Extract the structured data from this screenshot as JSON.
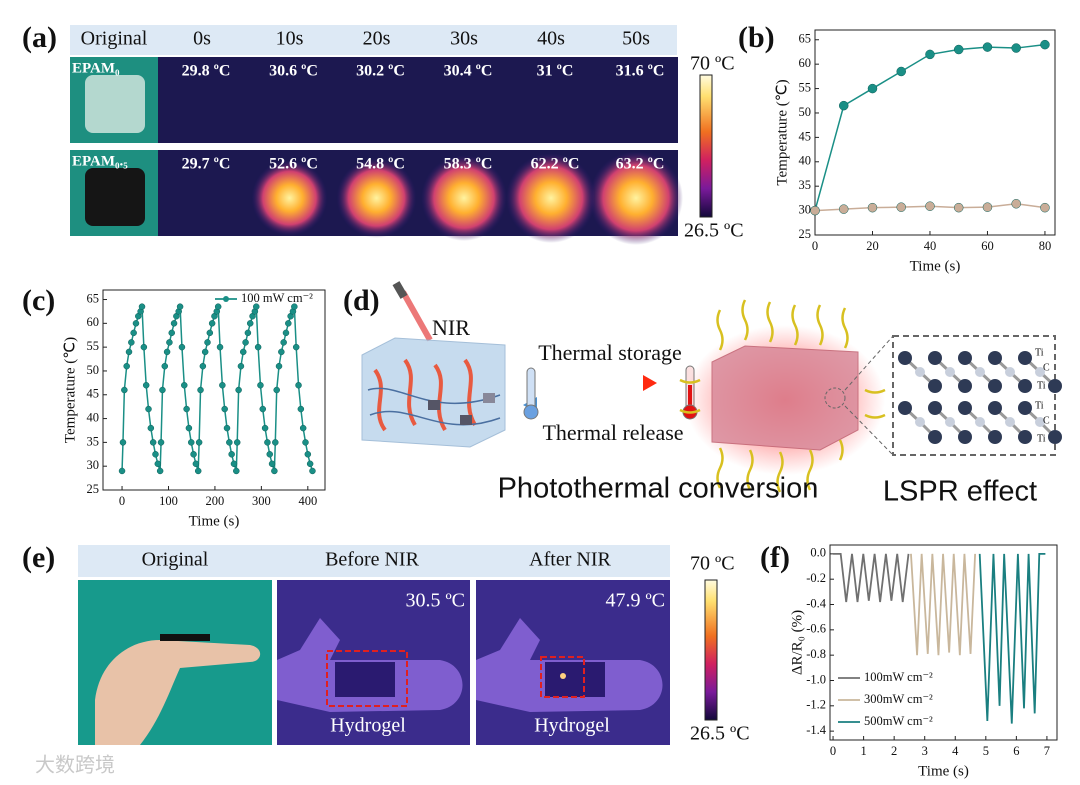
{
  "panel_labels": [
    "(a)",
    "(b)",
    "(c)",
    "(d)",
    "(e)",
    "(f)"
  ],
  "panel_a": {
    "header": [
      "Original",
      "0s",
      "10s",
      "20s",
      "30s",
      "40s",
      "50s"
    ],
    "rows": [
      {
        "label": "EPAM₀",
        "temps": [
          "29.8 ºC",
          "30.6 ºC",
          "30.2 ºC",
          "30.4 ºC",
          "31 ºC",
          "31.6 ºC"
        ]
      },
      {
        "label": "EPAM₀.₅",
        "temps": [
          "29.7 ºC",
          "52.6 ºC",
          "54.8 ºC",
          "58.3 ºC",
          "62.2 ºC",
          "63.2 ºC"
        ]
      }
    ],
    "colorbar": {
      "max": "70 ºC",
      "min": "26.5 ºC"
    }
  },
  "panel_d": {
    "nir": "NIR",
    "storage": "Thermal storage",
    "release": "Thermal release",
    "conversion": "Photothermal conversion",
    "lspr": "LSPR effect",
    "atoms": [
      "Ti",
      "C",
      "Ti",
      "Ti",
      "C",
      "Ti"
    ]
  },
  "panel_e": {
    "header": [
      "Original",
      "Before NIR",
      "After NIR"
    ],
    "temps": [
      "30.5 ºC",
      "47.9 ºC"
    ],
    "captions": [
      "Hydrogel",
      "Hydrogel"
    ],
    "colorbar": {
      "max": "70 ºC",
      "min": "26.5 ºC"
    }
  },
  "watermark": "大数跨境",
  "chart_data": [
    {
      "type": "line",
      "markers": true,
      "x": [
        0,
        10,
        20,
        30,
        40,
        50,
        60,
        70,
        80
      ],
      "series": [
        {
          "color": "#1a8f86",
          "values": [
            30,
            51.5,
            55,
            58.5,
            62,
            63,
            63.5,
            63.3,
            64
          ]
        },
        {
          "color": "#c9ad98",
          "values": [
            30,
            30.3,
            30.6,
            30.7,
            30.9,
            30.6,
            30.7,
            31.4,
            30.6
          ]
        }
      ],
      "xlabel": "Time (s)",
      "ylabel": "Temperature (℃)",
      "xlim": [
        0,
        83.5
      ],
      "xticks": [
        0,
        20,
        40,
        60,
        80
      ],
      "ylim": [
        25,
        67
      ],
      "yticks": [
        25,
        30,
        35,
        40,
        45,
        50,
        55,
        60,
        65
      ]
    },
    {
      "type": "line",
      "markers": true,
      "legend": "upper right",
      "x": [
        0,
        2,
        5,
        10,
        15,
        20,
        25,
        30,
        35,
        40,
        43,
        47,
        52,
        57,
        62,
        67,
        72,
        77,
        82,
        84,
        87,
        92,
        97,
        102,
        107,
        112,
        117,
        122,
        125,
        129,
        134,
        139,
        144,
        149,
        154,
        159,
        164,
        166,
        169,
        174,
        179,
        184,
        189,
        194,
        199,
        204,
        207,
        211,
        216,
        221,
        226,
        231,
        236,
        241,
        246,
        248,
        251,
        256,
        261,
        266,
        271,
        276,
        281,
        286,
        289,
        293,
        298,
        303,
        308,
        313,
        318,
        323,
        328,
        330,
        333,
        338,
        343,
        348,
        353,
        358,
        363,
        368,
        371,
        375,
        380,
        385,
        390,
        395,
        400,
        405,
        410
      ],
      "series": [
        {
          "name": "100 mW cm⁻²",
          "color": "#1a8f86",
          "values": [
            29,
            35,
            46,
            51,
            54,
            56,
            58,
            60,
            61.5,
            62.5,
            63.5,
            55,
            47,
            42,
            38,
            35,
            32.5,
            30.5,
            29,
            35,
            46,
            51,
            54,
            56,
            58,
            60,
            61.5,
            62.5,
            63.5,
            55,
            47,
            42,
            38,
            35,
            32.5,
            30.5,
            29,
            35,
            46,
            51,
            54,
            56,
            58,
            60,
            61.5,
            62.5,
            63.5,
            55,
            47,
            42,
            38,
            35,
            32.5,
            30.5,
            29,
            35,
            46,
            51,
            54,
            56,
            58,
            60,
            61.5,
            62.5,
            63.5,
            55,
            47,
            42,
            38,
            35,
            32.5,
            30.5,
            29,
            35,
            46,
            51,
            54,
            56,
            58,
            60,
            61.5,
            62.5,
            63.5,
            55,
            47,
            42,
            38,
            35,
            32.5,
            30.5,
            29
          ]
        }
      ],
      "xlabel": "Time (s)",
      "ylabel": "Temperature (℃)",
      "xlim": [
        -41,
        437
      ],
      "xticks": [
        0,
        100,
        200,
        300,
        400
      ],
      "ylim": [
        25,
        67
      ],
      "yticks": [
        25,
        30,
        35,
        40,
        45,
        50,
        55,
        60,
        65
      ]
    },
    {
      "type": "line",
      "markers": false,
      "legend": "lower left",
      "series": [
        {
          "name": "100mW cm⁻²",
          "color": "#707070",
          "x": [
            0,
            0.25,
            0.43,
            0.62,
            0.8,
            0.99,
            1.17,
            1.36,
            1.54,
            1.73,
            1.91,
            2.1,
            2.28,
            2.47
          ],
          "values": [
            0,
            0,
            -0.38,
            0,
            -0.38,
            0,
            -0.37,
            0,
            -0.38,
            0,
            -0.37,
            0,
            -0.38,
            0
          ]
        },
        {
          "name": "300mW cm⁻²",
          "color": "#c9b79c",
          "x": [
            2.55,
            2.75,
            2.9,
            3.1,
            3.25,
            3.45,
            3.6,
            3.8,
            3.95,
            4.15,
            4.3,
            4.5,
            4.65
          ],
          "values": [
            0,
            -0.8,
            0,
            -0.79,
            0,
            -0.8,
            0,
            -0.78,
            0,
            -0.8,
            0,
            -0.79,
            0
          ]
        },
        {
          "name": "500mW cm⁻²",
          "color": "#1a7f80",
          "x": [
            4.8,
            5.05,
            5.25,
            5.45,
            5.6,
            5.85,
            6.05,
            6.25,
            6.4,
            6.6,
            6.75,
            6.95
          ],
          "values": [
            0,
            -1.32,
            0,
            -1.2,
            0,
            -1.34,
            0,
            -1.22,
            0,
            -1.26,
            0,
            0
          ]
        }
      ],
      "xlabel": "Time (s)",
      "ylabel": "ΔR/R₀ (%)",
      "xlim": [
        -0.1,
        7.33
      ],
      "xticks": [
        0,
        1,
        2,
        3,
        4,
        5,
        6,
        7
      ],
      "ylim": [
        -1.47,
        0.07
      ],
      "yticks": [
        {
          "value": 0,
          "label": "0.0"
        },
        -0.2,
        -0.4,
        -0.6,
        -0.8,
        {
          "value": -1,
          "label": "-1.0"
        },
        -1.2,
        -1.4
      ]
    }
  ]
}
